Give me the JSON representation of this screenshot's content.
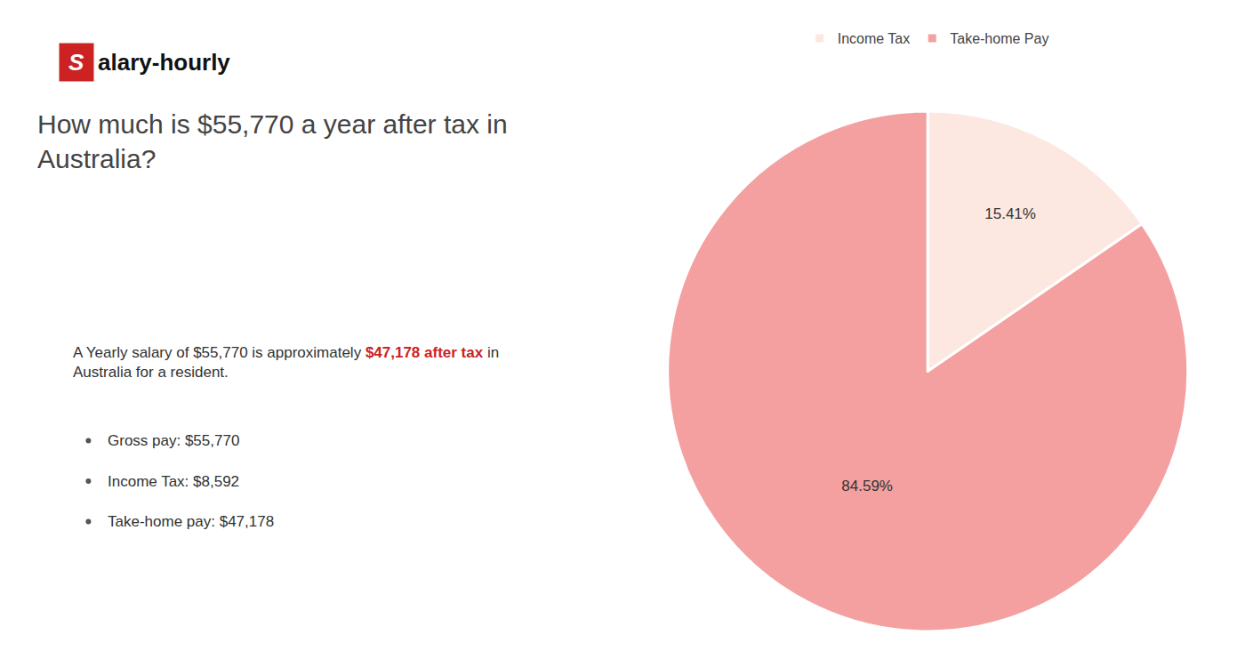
{
  "chart_data": {
    "type": "pie",
    "title": "How much is $55,770 a year after tax in\nAustralia?",
    "categories": [
      "Income Tax",
      "Take-home Pay"
    ],
    "values": [
      15.41,
      84.59
    ],
    "value_labels": [
      "15.41%",
      "84.59%"
    ],
    "colors": [
      "#fce8e0",
      "#f4a0a0"
    ],
    "data_labels": true,
    "legend": "top",
    "annotations": [
      {
        "text": "S",
        "color": "#cc2222"
      },
      {
        "text": "alary-hourly"
      },
      {
        "text": "A Yearly salary of $55,770 is approximately "
      },
      {
        "text": "$47,178 after tax",
        "color": "#cc2222"
      },
      {
        "text": " in"
      },
      {
        "text": "Australia for a resident."
      },
      {
        "text": "Gross pay: $55,770"
      },
      {
        "text": "Income Tax: $8,592"
      },
      {
        "text": "Take-home pay: $47,178"
      }
    ]
  }
}
